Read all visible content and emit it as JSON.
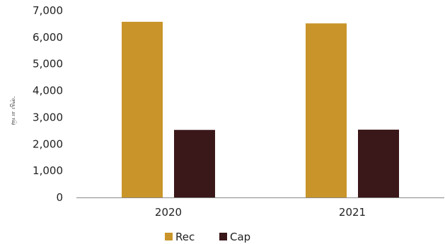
{
  "chart_data": {
    "type": "bar",
    "ylabel": "ரூபா பில்.",
    "categories": [
      "2020",
      "2021"
    ],
    "series": [
      {
        "name": "Rec",
        "color": "#C9952A",
        "values": [
          6580,
          6520
        ]
      },
      {
        "name": "Cap",
        "color": "#3A1719",
        "values": [
          2530,
          2540
        ]
      }
    ],
    "ylim": [
      0,
      7000
    ],
    "yticks": [
      "0",
      "1,000",
      "2,000",
      "3,000",
      "4,000",
      "5,000",
      "6,000",
      "7,000"
    ],
    "grid": false,
    "legend_position": "bottom"
  }
}
